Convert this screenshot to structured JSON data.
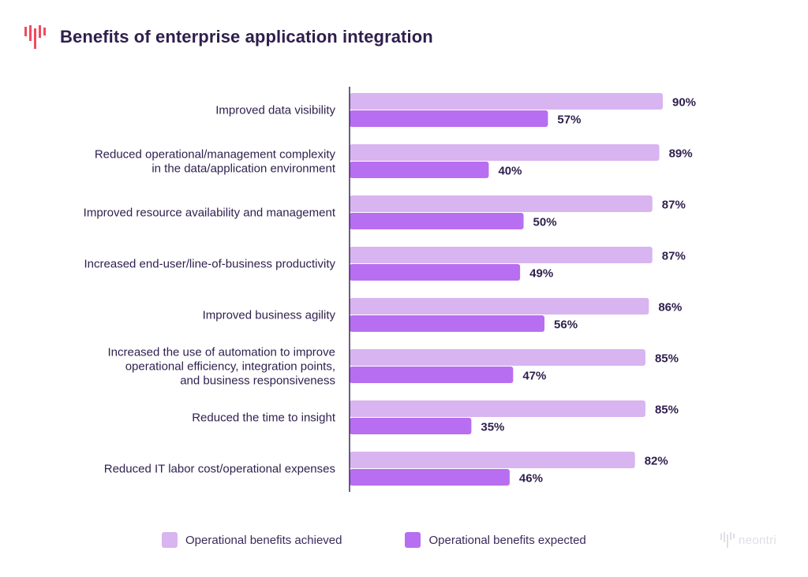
{
  "header": {
    "title": "Benefits of enterprise application integration"
  },
  "colors": {
    "accent": "#f04a5d",
    "achieved": "#d8b4f0",
    "expected": "#b86ef0",
    "text": "#2e1f4d"
  },
  "watermark": {
    "text": "neontri"
  },
  "legend": {
    "items": [
      {
        "label": "Operational benefits achieved",
        "color": "#d8b4f0"
      },
      {
        "label": "Operational benefits expected",
        "color": "#b86ef0"
      }
    ]
  },
  "chart_data": {
    "type": "bar",
    "orientation": "horizontal",
    "categories": [
      [
        "Improved data visibility"
      ],
      [
        "Reduced operational/management complexity",
        "in the data/application environment"
      ],
      [
        "Improved resource availability and management"
      ],
      [
        "Increased end-user/line-of-business productivity"
      ],
      [
        "Improved business agility"
      ],
      [
        "Increased the use of automation to improve",
        "operational efficiency, integration points,",
        "and business responsiveness"
      ],
      [
        "Reduced the time to insight"
      ],
      [
        "Reduced IT labor cost/operational expenses"
      ]
    ],
    "series": [
      {
        "name": "Operational benefits achieved",
        "values": [
          90,
          89,
          87,
          87,
          86,
          85,
          85,
          82
        ],
        "labels": [
          "90%",
          "89%",
          "87%",
          "87%",
          "86%",
          "85%",
          "85%",
          "82%"
        ]
      },
      {
        "name": "Operational benefits expected",
        "values": [
          57,
          40,
          50,
          49,
          56,
          47,
          35,
          46
        ],
        "labels": [
          "57%",
          "40%",
          "50%",
          "49%",
          "56%",
          "47%",
          "35%",
          "46%"
        ]
      }
    ],
    "xlim": [
      0,
      100
    ],
    "grid": false,
    "legend_position": "bottom"
  }
}
